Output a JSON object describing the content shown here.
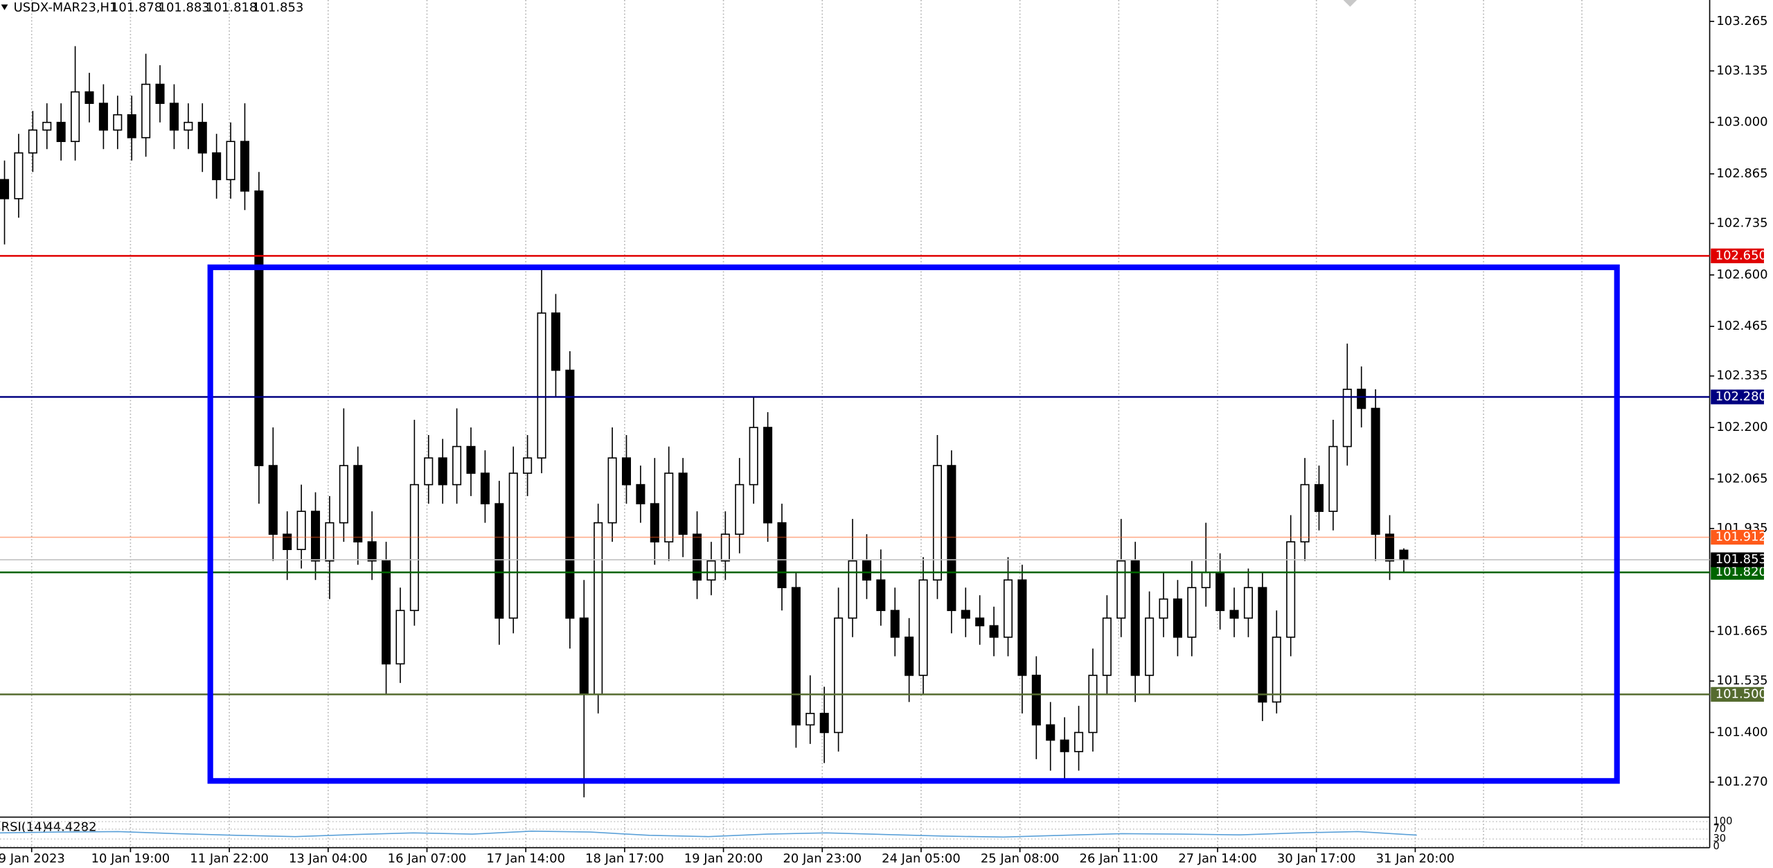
{
  "chart_data": {
    "type": "candlestick",
    "symbol": "USDX-MAR23,H1",
    "categories": [
      "9 Jan 2023",
      "10 Jan 19:00",
      "11 Jan 22:00",
      "13 Jan 04:00",
      "16 Jan 07:00",
      "17 Jan 14:00",
      "18 Jan 17:00",
      "19 Jan 20:00",
      "20 Jan 23:00",
      "24 Jan 05:00",
      "25 Jan 08:00",
      "26 Jan 11:00",
      "27 Jan 14:00",
      "30 Jan 17:00",
      "31 Jan 20:00"
    ],
    "open": [
      102.85,
      102.8,
      102.92,
      102.98,
      103.0,
      102.95,
      103.08,
      103.05,
      102.98,
      103.02,
      102.96,
      103.1,
      103.05,
      102.98,
      103.0,
      102.92,
      102.85,
      102.95,
      102.82,
      102.1,
      101.92,
      101.88,
      101.98,
      101.85,
      101.95,
      102.1,
      101.9,
      101.85,
      101.58,
      101.72,
      102.05,
      102.12,
      102.05,
      102.15,
      102.08,
      102.0,
      101.7,
      102.08,
      102.12,
      102.5,
      102.35,
      101.7,
      101.5,
      101.95,
      102.12,
      102.05,
      102.0,
      101.9,
      102.08,
      101.92,
      101.8,
      101.85,
      101.92,
      102.05,
      102.2,
      101.95,
      101.78,
      101.42,
      101.45,
      101.4,
      101.7,
      101.85,
      101.8,
      101.72,
      101.65,
      101.55,
      101.8,
      102.1,
      101.72,
      101.7,
      101.68,
      101.65,
      101.8,
      101.55,
      101.42,
      101.38,
      101.35,
      101.4,
      101.55,
      101.7,
      101.85,
      101.55,
      101.7,
      101.75,
      101.65,
      101.78,
      101.82,
      101.72,
      101.7,
      101.78,
      101.48,
      101.65,
      101.9,
      102.05,
      101.98,
      102.15,
      102.3,
      102.25,
      101.92,
      101.878
    ],
    "high": [
      102.9,
      102.97,
      103.03,
      103.05,
      103.05,
      103.2,
      103.13,
      103.1,
      103.07,
      103.07,
      103.18,
      103.15,
      103.1,
      103.05,
      103.05,
      102.97,
      103.0,
      103.05,
      102.87,
      102.2,
      101.98,
      102.05,
      102.03,
      102.02,
      102.25,
      102.15,
      101.98,
      101.9,
      101.78,
      102.22,
      102.18,
      102.17,
      102.25,
      102.2,
      102.14,
      102.06,
      102.15,
      102.18,
      102.62,
      102.55,
      102.4,
      101.8,
      102.0,
      102.2,
      102.18,
      102.1,
      102.12,
      102.15,
      102.12,
      101.98,
      101.9,
      101.98,
      102.12,
      102.28,
      102.24,
      102.0,
      101.82,
      101.55,
      101.52,
      101.78,
      101.96,
      101.92,
      101.88,
      101.78,
      101.7,
      101.86,
      102.18,
      102.14,
      101.78,
      101.76,
      101.73,
      101.86,
      101.84,
      101.6,
      101.48,
      101.44,
      101.47,
      101.62,
      101.76,
      101.96,
      101.9,
      101.77,
      101.82,
      101.8,
      101.85,
      101.95,
      101.87,
      101.78,
      101.83,
      101.82,
      101.72,
      101.97,
      102.12,
      102.1,
      102.22,
      102.42,
      102.36,
      102.3,
      101.97,
      101.883
    ],
    "low": [
      102.68,
      102.75,
      102.87,
      102.93,
      102.9,
      102.9,
      103.0,
      102.93,
      102.93,
      102.9,
      102.91,
      103.0,
      102.93,
      102.93,
      102.87,
      102.8,
      102.8,
      102.77,
      102.0,
      101.85,
      101.8,
      101.83,
      101.8,
      101.75,
      101.9,
      101.84,
      101.8,
      101.5,
      101.53,
      101.68,
      102.0,
      102.0,
      102.0,
      102.02,
      101.95,
      101.63,
      101.66,
      102.02,
      102.08,
      102.28,
      101.62,
      101.23,
      101.45,
      101.9,
      102.0,
      101.95,
      101.84,
      101.85,
      101.86,
      101.75,
      101.76,
      101.8,
      101.87,
      102.0,
      101.9,
      101.72,
      101.36,
      101.37,
      101.32,
      101.35,
      101.65,
      101.75,
      101.68,
      101.6,
      101.48,
      101.5,
      101.75,
      101.66,
      101.65,
      101.63,
      101.6,
      101.6,
      101.45,
      101.33,
      101.3,
      101.27,
      101.3,
      101.35,
      101.5,
      101.65,
      101.48,
      101.5,
      101.65,
      101.6,
      101.6,
      101.73,
      101.67,
      101.65,
      101.65,
      101.43,
      101.45,
      101.6,
      101.85,
      101.93,
      101.93,
      102.1,
      102.2,
      101.85,
      101.8,
      101.818
    ],
    "close": [
      102.8,
      102.92,
      102.98,
      103.0,
      102.95,
      103.08,
      103.05,
      102.98,
      103.02,
      102.96,
      103.1,
      103.05,
      102.98,
      103.0,
      102.92,
      102.85,
      102.95,
      102.82,
      102.1,
      101.92,
      101.88,
      101.98,
      101.85,
      101.95,
      102.1,
      101.9,
      101.85,
      101.58,
      101.72,
      102.05,
      102.12,
      102.05,
      102.15,
      102.08,
      102.0,
      101.7,
      102.08,
      102.12,
      102.5,
      102.35,
      101.7,
      101.5,
      101.95,
      102.12,
      102.05,
      102.0,
      101.9,
      102.08,
      101.92,
      101.8,
      101.85,
      101.92,
      102.05,
      102.2,
      101.95,
      101.78,
      101.42,
      101.45,
      101.4,
      101.7,
      101.85,
      101.8,
      101.72,
      101.65,
      101.55,
      101.8,
      102.1,
      101.72,
      101.7,
      101.68,
      101.65,
      101.8,
      101.55,
      101.42,
      101.38,
      101.35,
      101.4,
      101.55,
      101.7,
      101.85,
      101.55,
      101.7,
      101.75,
      101.65,
      101.78,
      101.82,
      101.72,
      101.7,
      101.78,
      101.48,
      101.65,
      101.9,
      102.05,
      101.98,
      102.15,
      102.3,
      102.25,
      101.92,
      101.85,
      101.853
    ],
    "up_color": "#ffffff",
    "down_color": "#000000",
    "ylim": [
      101.181,
      103.321
    ],
    "yticks": [
      103.265,
      103.135,
      {
        "value": 103.0,
        "label": "103.000"
      },
      102.865,
      102.735,
      {
        "value": 102.6,
        "label": "102.600"
      },
      102.465,
      102.335,
      {
        "value": 102.2,
        "label": "102.200"
      },
      102.065,
      101.935,
      101.665,
      101.535,
      {
        "value": 101.4,
        "label": "101.400"
      },
      {
        "value": 101.27,
        "label": "101.270"
      }
    ],
    "levels": [
      {
        "price": 102.65,
        "label": "102.650",
        "color": "#e00000"
      },
      {
        "price": 102.28,
        "label": "102.280",
        "color": "#000080"
      },
      {
        "price": 101.912,
        "color": "#ff5a1a"
      },
      {
        "price": 101.82,
        "label": "101.820",
        "color": "#006400"
      },
      {
        "price": 101.5,
        "label": "101.500",
        "color": "#556b2f"
      }
    ],
    "rectangle": {
      "top": 102.62,
      "bottom": 101.273,
      "color": "#0000ff"
    },
    "rsi": {
      "name": "RSI(14)",
      "value": 44.4282,
      "color": "#5aa0d8",
      "ylim": [
        0,
        100
      ],
      "yticks": [
        100,
        70,
        30,
        0
      ],
      "values": [
        55,
        58,
        60,
        52,
        45,
        40,
        48,
        55,
        50,
        62,
        58,
        45,
        40,
        50,
        55,
        48,
        42,
        38,
        45,
        52,
        50,
        47,
        55,
        60,
        46
      ]
    }
  }
}
